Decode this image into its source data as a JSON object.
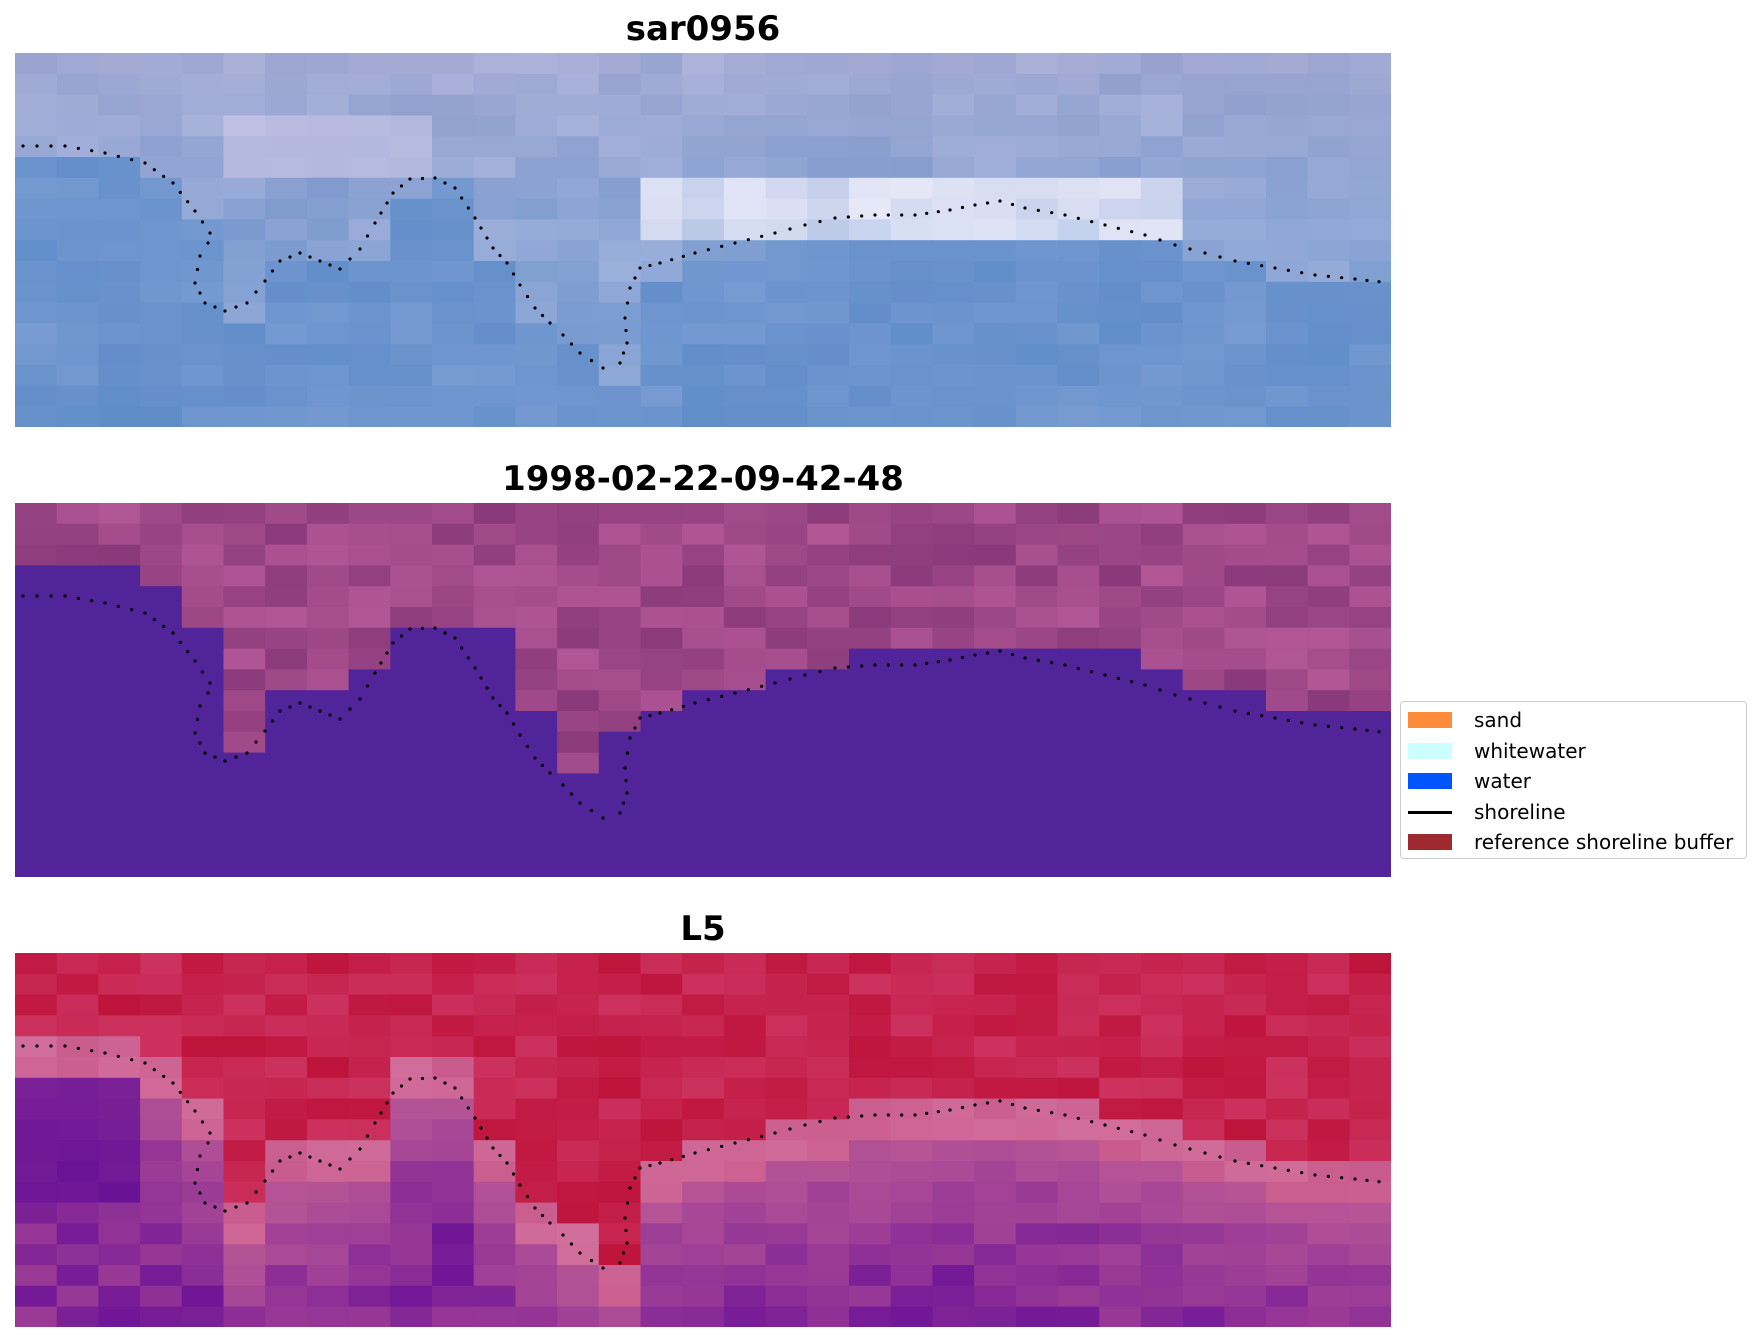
{
  "panels": [
    {
      "title": "sar0956",
      "palette": "blue"
    },
    {
      "title": "1998-02-22-09-42-48",
      "palette": "classified"
    },
    {
      "title": "L5",
      "palette": "red"
    }
  ],
  "legend": {
    "items": [
      {
        "label": "sand",
        "color": "#fd8b3c",
        "kind": "patch"
      },
      {
        "label": "whitewater",
        "color": "#ccffff",
        "kind": "patch"
      },
      {
        "label": "water",
        "color": "#0055ff",
        "kind": "patch"
      },
      {
        "label": "shoreline",
        "color": "#000000",
        "kind": "line"
      },
      {
        "label": "reference shoreline buffer",
        "color": "#9e2a2f",
        "kind": "patch"
      }
    ]
  },
  "colors": {
    "classified_water": "#52249a",
    "classified_land": "#9a4488"
  }
}
